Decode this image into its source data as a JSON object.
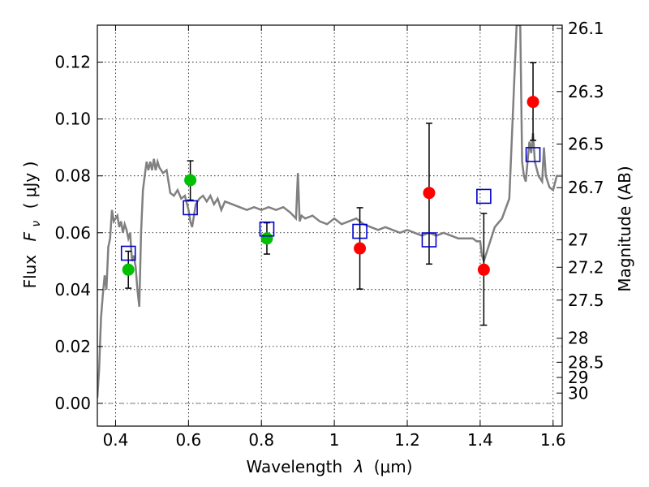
{
  "chart_data": {
    "type": "scatter",
    "title": "",
    "xlabel_text": "Wavelength",
    "xlabel_symbol": "λ",
    "xlabel_unit": "(μm)",
    "ylabel_text": "Flux",
    "ylabel_symbol": "F",
    "ylabel_symbol_sub": "ν",
    "ylabel_unit": "( μJy )",
    "y2label": "Magnitude (AB)",
    "xlim": [
      0.35,
      1.625
    ],
    "ylim": [
      -0.008,
      0.133
    ],
    "xticks": [
      {
        "value": 0.4,
        "label": "0.4"
      },
      {
        "value": 0.6,
        "label": "0.6"
      },
      {
        "value": 0.8,
        "label": "0.8"
      },
      {
        "value": 1.0,
        "label": "1"
      },
      {
        "value": 1.2,
        "label": "1.2"
      },
      {
        "value": 1.4,
        "label": "1.4"
      },
      {
        "value": 1.6,
        "label": "1.6"
      }
    ],
    "yticks": [
      {
        "value": 0.0,
        "label": "0.00"
      },
      {
        "value": 0.02,
        "label": "0.02"
      },
      {
        "value": 0.04,
        "label": "0.04"
      },
      {
        "value": 0.06,
        "label": "0.06"
      },
      {
        "value": 0.08,
        "label": "0.08"
      },
      {
        "value": 0.1,
        "label": "0.10"
      },
      {
        "value": 0.12,
        "label": "0.12"
      }
    ],
    "y2ticks": [
      {
        "mag": 26.1,
        "label": "26.1"
      },
      {
        "mag": 26.3,
        "label": "26.3"
      },
      {
        "mag": 26.5,
        "label": "26.5"
      },
      {
        "mag": 26.7,
        "label": "26.7"
      },
      {
        "mag": 27.0,
        "label": "27"
      },
      {
        "mag": 27.2,
        "label": "27.2"
      },
      {
        "mag": 27.5,
        "label": "27.5"
      },
      {
        "mag": 28.0,
        "label": "28"
      },
      {
        "mag": 28.5,
        "label": "28.5"
      },
      {
        "mag": 29.0,
        "label": "29"
      },
      {
        "mag": 30.0,
        "label": "30"
      }
    ],
    "grid": true,
    "colors": {
      "model": "#808080",
      "green": "#00c000",
      "red": "#ff0000",
      "squares": "#0000cc",
      "errorbar": "#000000"
    },
    "model_spectrum": {
      "x": [
        0.35,
        0.355,
        0.36,
        0.365,
        0.37,
        0.375,
        0.38,
        0.385,
        0.39,
        0.395,
        0.4,
        0.405,
        0.41,
        0.415,
        0.42,
        0.425,
        0.43,
        0.435,
        0.44,
        0.445,
        0.45,
        0.455,
        0.46,
        0.465,
        0.47,
        0.475,
        0.48,
        0.485,
        0.49,
        0.495,
        0.5,
        0.505,
        0.51,
        0.515,
        0.52,
        0.53,
        0.54,
        0.55,
        0.56,
        0.57,
        0.58,
        0.59,
        0.6,
        0.605,
        0.61,
        0.615,
        0.62,
        0.63,
        0.64,
        0.65,
        0.66,
        0.67,
        0.68,
        0.69,
        0.7,
        0.72,
        0.74,
        0.76,
        0.78,
        0.8,
        0.82,
        0.84,
        0.86,
        0.88,
        0.895,
        0.9,
        0.905,
        0.91,
        0.92,
        0.94,
        0.96,
        0.98,
        1.0,
        1.02,
        1.04,
        1.06,
        1.08,
        1.1,
        1.12,
        1.14,
        1.16,
        1.18,
        1.2,
        1.22,
        1.24,
        1.26,
        1.28,
        1.3,
        1.32,
        1.34,
        1.36,
        1.38,
        1.39,
        1.4,
        1.405,
        1.41,
        1.42,
        1.44,
        1.46,
        1.48,
        1.5,
        1.51,
        1.515,
        1.52,
        1.525,
        1.53,
        1.535,
        1.54,
        1.545,
        1.55,
        1.56,
        1.57,
        1.575,
        1.58,
        1.59,
        1.6,
        1.61,
        1.625
      ],
      "y": [
        0.002,
        0.012,
        0.03,
        0.038,
        0.045,
        0.04,
        0.055,
        0.058,
        0.068,
        0.064,
        0.065,
        0.066,
        0.062,
        0.064,
        0.06,
        0.063,
        0.061,
        0.058,
        0.06,
        0.05,
        0.052,
        0.048,
        0.04,
        0.034,
        0.06,
        0.075,
        0.08,
        0.085,
        0.082,
        0.085,
        0.082,
        0.086,
        0.082,
        0.085,
        0.083,
        0.081,
        0.082,
        0.074,
        0.073,
        0.075,
        0.072,
        0.073,
        0.068,
        0.064,
        0.062,
        0.066,
        0.07,
        0.072,
        0.073,
        0.071,
        0.073,
        0.07,
        0.072,
        0.068,
        0.071,
        0.07,
        0.069,
        0.068,
        0.069,
        0.068,
        0.069,
        0.068,
        0.069,
        0.067,
        0.065,
        0.081,
        0.064,
        0.066,
        0.065,
        0.066,
        0.064,
        0.063,
        0.065,
        0.063,
        0.064,
        0.065,
        0.063,
        0.062,
        0.061,
        0.062,
        0.061,
        0.06,
        0.061,
        0.06,
        0.059,
        0.06,
        0.059,
        0.06,
        0.059,
        0.058,
        0.058,
        0.058,
        0.057,
        0.057,
        0.052,
        0.05,
        0.054,
        0.062,
        0.065,
        0.072,
        0.133,
        0.133,
        0.085,
        0.08,
        0.078,
        0.085,
        0.092,
        0.088,
        0.095,
        0.085,
        0.08,
        0.078,
        0.09,
        0.08,
        0.076,
        0.075,
        0.08,
        0.08
      ]
    },
    "series": [
      {
        "marker": "circle",
        "color": "green",
        "points": [
          {
            "x": 0.435,
            "y": 0.047,
            "err_lo": 0.0405,
            "err_hi": 0.0535
          },
          {
            "x": 0.605,
            "y": 0.0785,
            "err_lo": 0.0715,
            "err_hi": 0.0853
          },
          {
            "x": 0.815,
            "y": 0.058,
            "err_lo": 0.0525,
            "err_hi": 0.0635
          }
        ]
      },
      {
        "marker": "circle",
        "color": "red",
        "points": [
          {
            "x": 1.07,
            "y": 0.0545,
            "err_lo": 0.0402,
            "err_hi": 0.0688
          },
          {
            "x": 1.26,
            "y": 0.074,
            "err_lo": 0.049,
            "err_hi": 0.0985
          },
          {
            "x": 1.41,
            "y": 0.047,
            "err_lo": 0.0275,
            "err_hi": 0.0668
          },
          {
            "x": 1.545,
            "y": 0.106,
            "err_lo": 0.0925,
            "err_hi": 0.1198
          }
        ]
      },
      {
        "marker": "open-square",
        "color": "squares",
        "points": [
          {
            "x": 0.435,
            "y": 0.0528
          },
          {
            "x": 0.605,
            "y": 0.0688
          },
          {
            "x": 0.815,
            "y": 0.0613
          },
          {
            "x": 1.07,
            "y": 0.0605
          },
          {
            "x": 1.26,
            "y": 0.0575
          },
          {
            "x": 1.41,
            "y": 0.0728
          },
          {
            "x": 1.545,
            "y": 0.0875
          }
        ]
      }
    ]
  }
}
